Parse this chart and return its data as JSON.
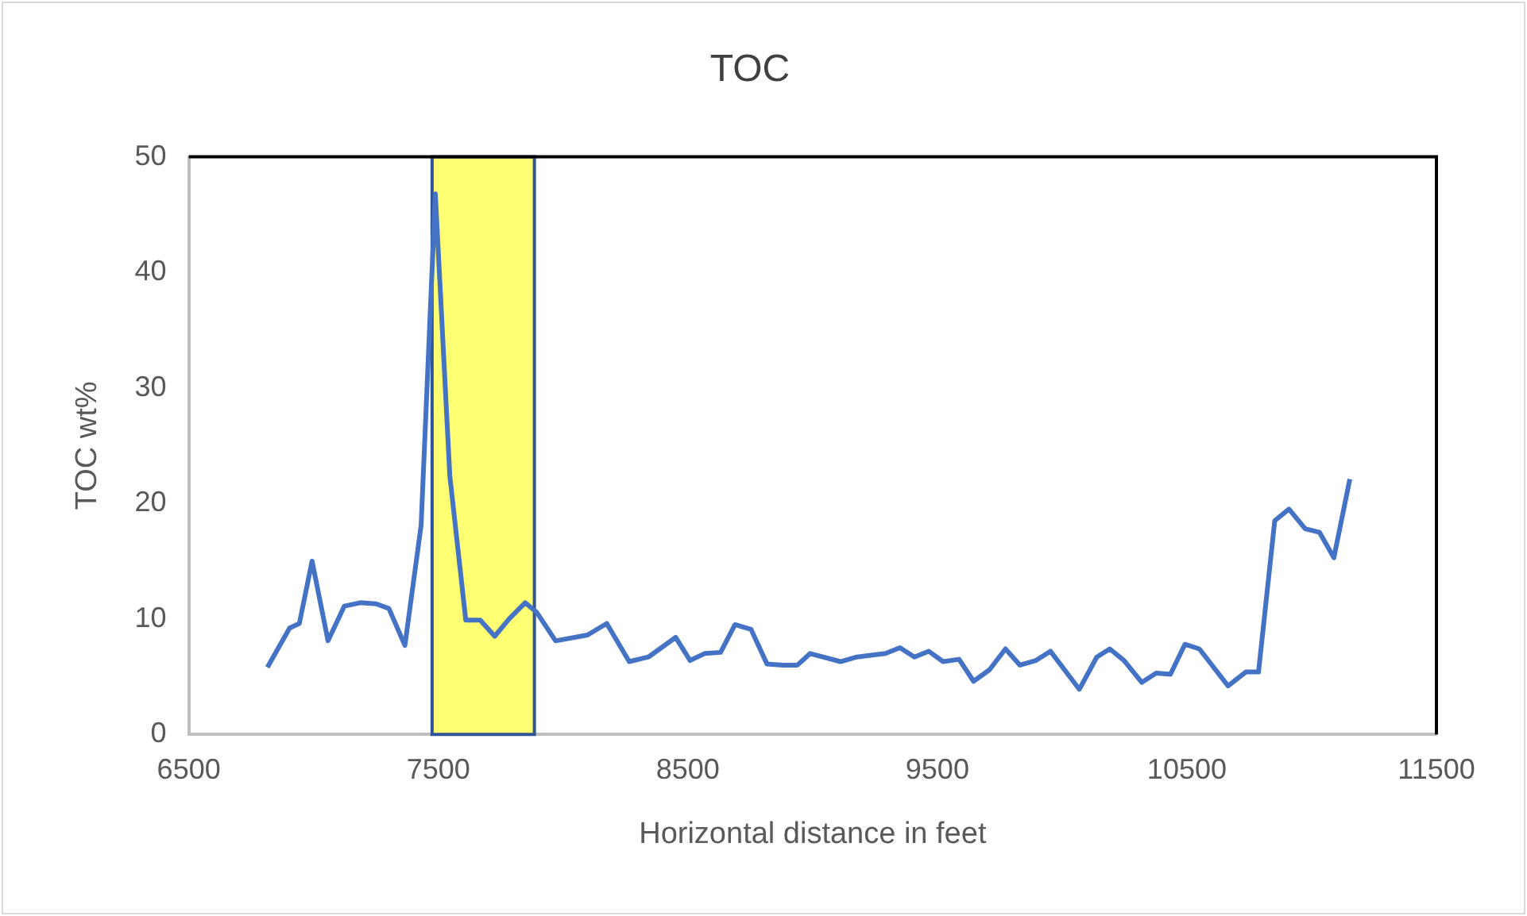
{
  "chart_data": {
    "type": "line",
    "title": "TOC",
    "xlabel": "Horizontal distance in feet",
    "ylabel": "TOC wt%",
    "xlim": [
      6500,
      11500
    ],
    "xticks": [
      6500,
      7500,
      8500,
      9500,
      10500,
      11500
    ],
    "ylim": [
      0,
      50
    ],
    "yticks": [
      0,
      10,
      20,
      30,
      40,
      50
    ],
    "grid": false,
    "legend": false,
    "marker": "none",
    "line_style": "solid",
    "bands": [
      {
        "axis": "x",
        "from": 7475,
        "to": 7885,
        "color": "#ffff00"
      }
    ],
    "series": [
      {
        "color": "#4472c4",
        "x": [
          6815,
          6904,
          6943,
          6994,
          7058,
          7123,
          7187,
          7251,
          7302,
          7366,
          7431,
          7488,
          7546,
          7610,
          7668,
          7726,
          7784,
          7848,
          7893,
          7970,
          8098,
          8175,
          8265,
          8342,
          8451,
          8509,
          8567,
          8631,
          8689,
          8753,
          8817,
          8881,
          8939,
          8990,
          9112,
          9177,
          9292,
          9350,
          9408,
          9465,
          9523,
          9587,
          9645,
          9709,
          9773,
          9831,
          9895,
          9953,
          10069,
          10139,
          10191,
          10248,
          10319,
          10377,
          10434,
          10492,
          10550,
          10665,
          10736,
          10787,
          10852,
          10909,
          10974,
          11031,
          11089,
          11153
        ],
        "values": [
          5.8,
          9.2,
          9.6,
          15.0,
          8.1,
          11.1,
          11.4,
          11.3,
          10.9,
          7.7,
          18.1,
          46.8,
          22.4,
          9.9,
          9.9,
          8.5,
          10.0,
          11.4,
          10.6,
          8.1,
          8.6,
          9.6,
          6.3,
          6.7,
          8.4,
          6.4,
          7.0,
          7.1,
          9.5,
          9.1,
          6.1,
          6.0,
          6.0,
          7.0,
          6.3,
          6.7,
          7.0,
          7.5,
          6.7,
          7.2,
          6.3,
          6.5,
          4.6,
          5.6,
          7.4,
          6.0,
          6.4,
          7.2,
          3.9,
          6.7,
          7.4,
          6.4,
          4.5,
          5.3,
          5.2,
          7.8,
          7.4,
          4.2,
          5.4,
          5.4,
          18.5,
          19.5,
          17.8,
          17.5,
          15.3,
          22.1
        ]
      }
    ]
  }
}
